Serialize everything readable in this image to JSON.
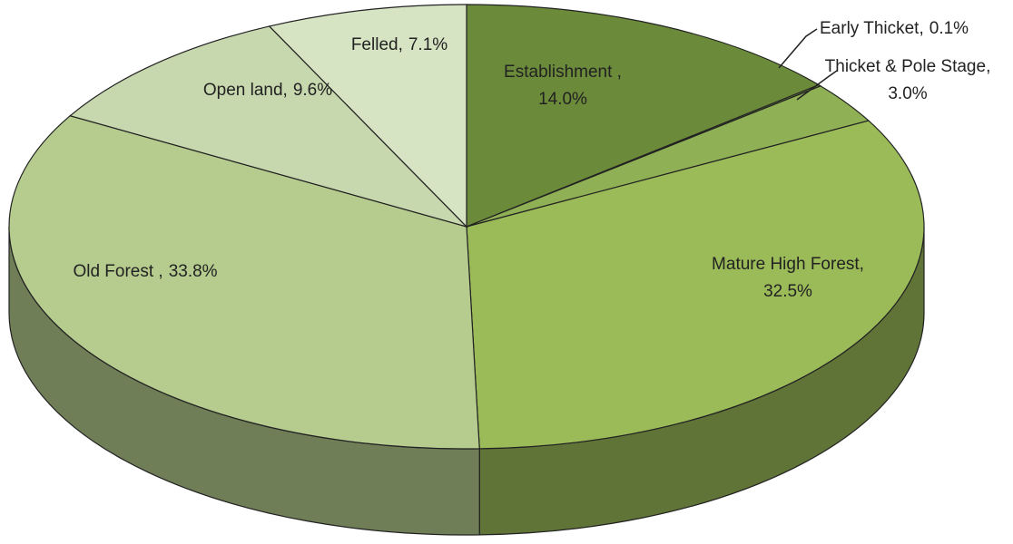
{
  "chart_data": {
    "type": "pie",
    "categories": [
      "Establishment ,",
      "Early Thicket,",
      "Thicket & Pole Stage,",
      "Mature High Forest,",
      "Old Forest ,",
      "Open land,",
      "Felled,"
    ],
    "values": [
      14.0,
      0.1,
      3.0,
      32.5,
      33.8,
      9.6,
      7.1
    ],
    "value_labels": [
      "14.0%",
      "0.1%",
      "3.0%",
      "32.5%",
      "33.8%",
      "9.6%",
      "7.1%"
    ],
    "colors": [
      "#6b8a3a",
      "#7a9a45",
      "#8fb055",
      "#9bbb59",
      "#b5cc8e",
      "#c8d8ae",
      "#d7e4c3"
    ]
  }
}
